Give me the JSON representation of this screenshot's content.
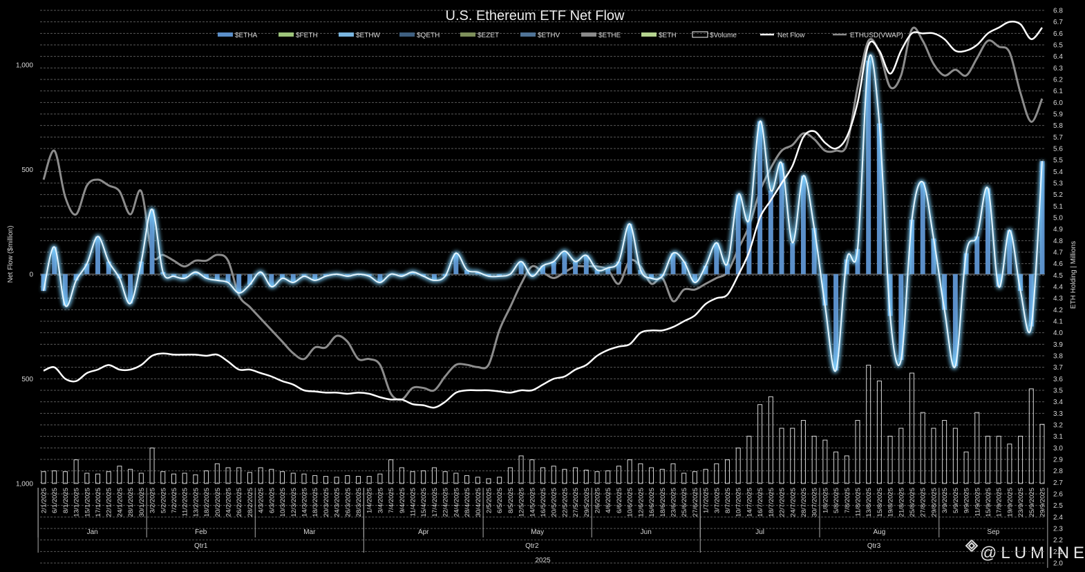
{
  "chart_data": {
    "type": "combo",
    "title": "U.S. Ethereum ETF Net Flow",
    "y_label": "Net Flow ($million)",
    "y2_label": "ETH Holding | Millions",
    "watermark": "@LUMINE",
    "year": "2025",
    "months": [
      "Jan",
      "Feb",
      "Mar",
      "Apr",
      "May",
      "Jun",
      "Jul",
      "Aug",
      "Sep"
    ],
    "quarters": [
      "Qtr1",
      "Qtr2",
      "Qtr3"
    ],
    "grid": true,
    "categories": [
      "2/1/2025",
      "6/1/2025",
      "8/1/2025",
      "13/1/2025",
      "15/1/2025",
      "17/1/2025",
      "22/1/2025",
      "24/1/2025",
      "28/1/2025",
      "30/1/2025",
      "3/2/2025",
      "5/2/2025",
      "7/2/2025",
      "11/2/2025",
      "13/2/2025",
      "18/2/2025",
      "20/2/2025",
      "24/2/2025",
      "26/2/2025",
      "28/2/2025",
      "4/3/2025",
      "6/3/2025",
      "10/3/2025",
      "12/3/2025",
      "14/3/2025",
      "18/3/2025",
      "20/3/2025",
      "24/3/2025",
      "26/3/2025",
      "28/3/2025",
      "1/4/2025",
      "3/4/2025",
      "7/4/2025",
      "9/4/2025",
      "11/4/2025",
      "15/4/2025",
      "17/4/2025",
      "22/4/2025",
      "24/4/2025",
      "28/4/2025",
      "30/4/2025",
      "2/5/2025",
      "6/5/2025",
      "8/5/2025",
      "12/5/2025",
      "14/5/2025",
      "16/5/2025",
      "20/5/2025",
      "22/5/2025",
      "27/5/2025",
      "29/5/2025",
      "2/6/2025",
      "4/6/2025",
      "6/6/2025",
      "10/6/2025",
      "12/6/2025",
      "16/6/2025",
      "18/6/2025",
      "23/6/2025",
      "25/6/2025",
      "27/6/2025",
      "1/7/2025",
      "3/7/2025",
      "8/7/2025",
      "10/7/2025",
      "14/7/2025",
      "16/7/2025",
      "18/7/2025",
      "22/7/2025",
      "24/7/2025",
      "28/7/2025",
      "30/7/2025",
      "1/8/2025",
      "5/8/2025",
      "7/8/2025",
      "11/8/2025",
      "13/8/2025",
      "15/8/2025",
      "19/8/2025",
      "21/8/2025",
      "25/8/2025",
      "27/8/2025",
      "29/8/2025",
      "3/9/2025",
      "5/9/2025",
      "9/9/2025",
      "11/9/2025",
      "15/9/2025",
      "17/9/2025",
      "19/9/2025",
      "23/9/2025",
      "25/9/2025",
      "29/9/2025"
    ],
    "ylim": [
      -1380,
      1260
    ],
    "yticks": [
      {
        "value": 1000,
        "label": "1,000"
      },
      500,
      0,
      {
        "value": -500,
        "label": "500"
      },
      {
        "value": -1000,
        "label": "1,000"
      }
    ],
    "y2lim": [
      2.0,
      6.8
    ],
    "y2ticks": [
      {
        "value": 2.0,
        "label": "2.0"
      },
      {
        "value": 2.1,
        "label": "2.1"
      },
      {
        "value": 2.2,
        "label": "2.2"
      },
      {
        "value": 2.3,
        "label": "2.3"
      },
      {
        "value": 2.4,
        "label": "2.4"
      },
      {
        "value": 2.5,
        "label": "2.5"
      },
      {
        "value": 2.6,
        "label": "2.6"
      },
      {
        "value": 2.7,
        "label": "2.7"
      },
      {
        "value": 2.8,
        "label": "2.8"
      },
      {
        "value": 2.9,
        "label": "2.9"
      },
      {
        "value": 3.0,
        "label": "3.0"
      },
      {
        "value": 3.1,
        "label": "3.1"
      },
      {
        "value": 3.2,
        "label": "3.2"
      },
      {
        "value": 3.3,
        "label": "3.3"
      },
      {
        "value": 3.4,
        "label": "3.4"
      },
      {
        "value": 3.5,
        "label": "3.5"
      },
      {
        "value": 3.6,
        "label": "3.6"
      },
      {
        "value": 3.7,
        "label": "3.7"
      },
      {
        "value": 3.8,
        "label": "3.8"
      },
      {
        "value": 3.9,
        "label": "3.9"
      },
      {
        "value": 4.0,
        "label": "4.0"
      },
      {
        "value": 4.1,
        "label": "4.1"
      },
      {
        "value": 4.2,
        "label": "4.2"
      },
      {
        "value": 4.3,
        "label": "4.3"
      },
      {
        "value": 4.4,
        "label": "4.4"
      },
      {
        "value": 4.5,
        "label": "4.5"
      },
      {
        "value": 4.6,
        "label": "4.6"
      },
      {
        "value": 4.7,
        "label": "4.7"
      },
      {
        "value": 4.8,
        "label": "4.8"
      },
      {
        "value": 4.9,
        "label": "4.9"
      },
      {
        "value": 5.0,
        "label": "5.0"
      },
      {
        "value": 5.1,
        "label": "5.1"
      },
      {
        "value": 5.2,
        "label": "5.2"
      },
      {
        "value": 5.3,
        "label": "5.3"
      },
      {
        "value": 5.4,
        "label": "5.4"
      },
      {
        "value": 5.5,
        "label": "5.5"
      },
      {
        "value": 5.6,
        "label": "5.6"
      },
      {
        "value": 5.7,
        "label": "5.7"
      },
      {
        "value": 5.8,
        "label": "5.8"
      },
      {
        "value": 5.9,
        "label": "5.9"
      },
      {
        "value": 6.0,
        "label": "6.0"
      },
      {
        "value": 6.1,
        "label": "6.1"
      },
      {
        "value": 6.2,
        "label": "6.2"
      },
      {
        "value": 6.3,
        "label": "6.3"
      },
      {
        "value": 6.4,
        "label": "6.4"
      },
      {
        "value": 6.5,
        "label": "6.5"
      },
      {
        "value": 6.6,
        "label": "6.6"
      },
      {
        "value": 6.7,
        "label": "6.7"
      },
      {
        "value": 6.8,
        "label": "6.8"
      }
    ],
    "price_lim": [
      87,
      4863
    ],
    "volume_lim": [
      0,
      6000
    ],
    "series": [
      {
        "name": "$ETHA",
        "color": "#5b8fc9",
        "kind": "bar",
        "values": [
          -80,
          130,
          -150,
          -30,
          50,
          180,
          60,
          -20,
          -140,
          60,
          310,
          10,
          -10,
          -20,
          10,
          -20,
          -30,
          -40,
          -90,
          -50,
          10,
          -60,
          -20,
          -40,
          -10,
          -30,
          -10,
          0,
          -10,
          0,
          -10,
          -40,
          0,
          -10,
          10,
          -10,
          -30,
          -10,
          100,
          20,
          10,
          -10,
          -10,
          0,
          60,
          -10,
          40,
          60,
          110,
          60,
          90,
          20,
          30,
          60,
          240,
          20,
          -20,
          -10,
          100,
          60,
          -40,
          40,
          150,
          50,
          380,
          260,
          730,
          400,
          530,
          150,
          470,
          220,
          -150,
          -460,
          70,
          120,
          1020,
          720,
          -200,
          -410,
          260,
          440,
          170,
          -170,
          -440,
          100,
          180,
          410,
          -60,
          210,
          -80,
          -250,
          540
        ]
      },
      {
        "name": "$FETH",
        "color": "#9dc47a",
        "kind": "legend"
      },
      {
        "name": "$ETHW",
        "color": "#7ab6e0",
        "kind": "legend"
      },
      {
        "name": "$QETH",
        "color": "#3e5f80",
        "kind": "legend"
      },
      {
        "name": "$EZET",
        "color": "#7d8f5a",
        "kind": "legend"
      },
      {
        "name": "$ETHV",
        "color": "#4f7396",
        "kind": "legend"
      },
      {
        "name": "$ETHE",
        "color": "#8a8a8a",
        "kind": "legend"
      },
      {
        "name": "$ETH",
        "color": "#b5d38f",
        "kind": "legend"
      },
      {
        "name": "$Volume",
        "color": "#ffffff",
        "kind": "volume",
        "values": [
          150,
          160,
          150,
          300,
          130,
          120,
          150,
          220,
          180,
          130,
          450,
          150,
          120,
          130,
          110,
          160,
          250,
          200,
          200,
          140,
          200,
          180,
          150,
          130,
          120,
          100,
          90,
          80,
          100,
          90,
          90,
          120,
          300,
          200,
          150,
          160,
          200,
          150,
          130,
          100,
          80,
          60,
          80,
          200,
          350,
          300,
          200,
          220,
          180,
          200,
          170,
          150,
          160,
          220,
          300,
          250,
          200,
          180,
          250,
          130,
          150,
          180,
          250,
          300,
          450,
          600,
          1000,
          1100,
          700,
          700,
          800,
          600,
          550,
          400,
          350,
          800,
          1500,
          1300,
          600,
          700,
          1400,
          900,
          700,
          800,
          700,
          400,
          900,
          600,
          600,
          500,
          600,
          1200,
          750
        ]
      },
      {
        "name": "Net Flow",
        "color": "#ffffff",
        "kind": "line",
        "axis": "y2",
        "values": [
          3.67,
          3.7,
          3.6,
          3.58,
          3.65,
          3.68,
          3.72,
          3.68,
          3.68,
          3.72,
          3.8,
          3.82,
          3.81,
          3.81,
          3.81,
          3.8,
          3.81,
          3.75,
          3.68,
          3.68,
          3.65,
          3.62,
          3.58,
          3.55,
          3.5,
          3.49,
          3.48,
          3.48,
          3.47,
          3.48,
          3.47,
          3.44,
          3.42,
          3.42,
          3.38,
          3.37,
          3.35,
          3.4,
          3.48,
          3.5,
          3.5,
          3.5,
          3.49,
          3.48,
          3.5,
          3.5,
          3.55,
          3.6,
          3.62,
          3.68,
          3.72,
          3.8,
          3.85,
          3.88,
          3.9,
          4.0,
          4.02,
          4.02,
          4.05,
          4.1,
          4.15,
          4.25,
          4.3,
          4.33,
          4.5,
          4.7,
          5.0,
          5.15,
          5.3,
          5.45,
          5.7,
          5.75,
          5.65,
          5.6,
          5.7,
          6.0,
          6.5,
          6.45,
          6.25,
          6.45,
          6.6,
          6.6,
          6.6,
          6.55,
          6.45,
          6.45,
          6.5,
          6.6,
          6.65,
          6.7,
          6.68,
          6.55,
          6.65
        ]
      },
      {
        "name": "ETHUSD(VWAP)",
        "color": "#8c8c8c",
        "kind": "price",
        "values": [
          3400,
          3650,
          3250,
          3100,
          3350,
          3400,
          3350,
          3300,
          3100,
          3300,
          2750,
          2750,
          2700,
          2650,
          2700,
          2700,
          2750,
          2700,
          2400,
          2300,
          2200,
          2100,
          2000,
          1900,
          1850,
          1950,
          1950,
          2050,
          2000,
          1850,
          1850,
          1800,
          1550,
          1500,
          1600,
          1600,
          1580,
          1700,
          1800,
          1800,
          1780,
          1800,
          2100,
          2300,
          2500,
          2650,
          2600,
          2550,
          2600,
          2650,
          2650,
          2650,
          2620,
          2500,
          2700,
          2650,
          2500,
          2550,
          2350,
          2450,
          2450,
          2500,
          2550,
          2600,
          2800,
          3000,
          3300,
          3500,
          3650,
          3700,
          3800,
          3750,
          3650,
          3650,
          3700,
          4200,
          4600,
          4500,
          4200,
          4300,
          4700,
          4600,
          4400,
          4300,
          4350,
          4300,
          4450,
          4600,
          4550,
          4500,
          4150,
          3900,
          4100
        ]
      }
    ]
  }
}
